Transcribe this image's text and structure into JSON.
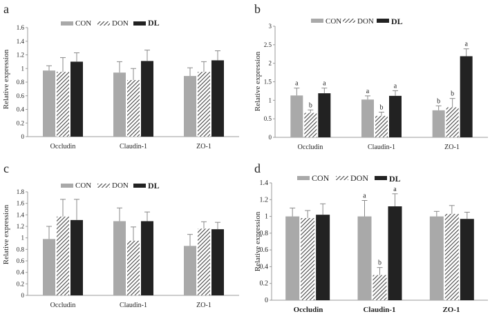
{
  "colors": {
    "CON": "#a9a9a9",
    "DON": "#444444",
    "DL": "#222222",
    "axis": "#999999",
    "error": "#888888"
  },
  "chart_data": [
    {
      "panel": "a",
      "type": "bar",
      "ylabel": "Relative expression",
      "ylim": [
        0,
        1.6
      ],
      "yticks": [
        "0",
        "0.2",
        "0.4",
        "0.6",
        "0.8",
        "1",
        "1.2",
        "1.4",
        "1.6"
      ],
      "categories": [
        "Occludin",
        "Claudin-1",
        "ZO-1"
      ],
      "legend": [
        "CON",
        "DON",
        "DL"
      ],
      "legend_position": "top",
      "series": [
        {
          "name": "CON",
          "values": [
            0.97,
            0.94,
            0.89
          ],
          "errors": [
            0.07,
            0.16,
            0.12
          ],
          "labels": [
            "",
            "",
            ""
          ]
        },
        {
          "name": "DON",
          "values": [
            0.95,
            0.83,
            0.95
          ],
          "errors": [
            0.21,
            0.17,
            0.15
          ],
          "labels": [
            "",
            "",
            ""
          ]
        },
        {
          "name": "DL",
          "values": [
            1.1,
            1.11,
            1.12
          ],
          "errors": [
            0.13,
            0.16,
            0.14
          ],
          "labels": [
            "",
            "",
            ""
          ]
        }
      ]
    },
    {
      "panel": "b",
      "type": "bar",
      "ylabel": "Relative expression",
      "ylim": [
        0,
        3
      ],
      "yticks": [
        "0",
        "0.5",
        "1",
        "1.5",
        "2",
        "2.5",
        "3"
      ],
      "categories": [
        "Occludin",
        "Claudin-1",
        "ZO-1"
      ],
      "legend": [
        "CON",
        "DON",
        "DL"
      ],
      "legend_position": "top",
      "series": [
        {
          "name": "CON",
          "values": [
            1.13,
            1.02,
            0.73
          ],
          "errors": [
            0.2,
            0.1,
            0.12
          ],
          "labels": [
            "a",
            "a",
            "b"
          ]
        },
        {
          "name": "DON",
          "values": [
            0.66,
            0.58,
            0.81
          ],
          "errors": [
            0.08,
            0.1,
            0.24
          ],
          "labels": [
            "b",
            "b",
            "b"
          ]
        },
        {
          "name": "DL",
          "values": [
            1.19,
            1.12,
            2.19
          ],
          "errors": [
            0.14,
            0.14,
            0.2
          ],
          "labels": [
            "a",
            "a",
            "a"
          ]
        }
      ]
    },
    {
      "panel": "c",
      "type": "bar",
      "ylabel": "Relative expression",
      "ylim": [
        0,
        1.8
      ],
      "yticks": [
        "0",
        "0.2",
        "0.4",
        "0.6",
        "0.8",
        "1",
        "1.2",
        "1.4",
        "1.6",
        "1.8"
      ],
      "categories": [
        "Occludin",
        "Claudin-1",
        "ZO-1"
      ],
      "legend": [
        "CON",
        "DON",
        "DL"
      ],
      "legend_position": "top",
      "series": [
        {
          "name": "CON",
          "values": [
            0.98,
            1.29,
            0.86
          ],
          "errors": [
            0.22,
            0.23,
            0.2
          ],
          "labels": [
            "",
            "",
            ""
          ]
        },
        {
          "name": "DON",
          "values": [
            1.37,
            0.95,
            1.16
          ],
          "errors": [
            0.3,
            0.24,
            0.12
          ],
          "labels": [
            "",
            "",
            ""
          ]
        },
        {
          "name": "DL",
          "values": [
            1.31,
            1.29,
            1.15
          ],
          "errors": [
            0.36,
            0.16,
            0.12
          ],
          "labels": [
            "",
            "",
            ""
          ]
        }
      ]
    },
    {
      "panel": "d",
      "type": "bar",
      "ylabel": "Relative expression",
      "ylim": [
        0,
        1.4
      ],
      "yticks": [
        "0",
        "0.2",
        "0.4",
        "0.6",
        "0.8",
        "1",
        "1.2",
        "1.4"
      ],
      "categories": [
        "Occludin",
        "Claudin-1",
        "ZO-1"
      ],
      "legend": [
        "CON",
        "DON",
        "DL"
      ],
      "legend_position": "top",
      "series": [
        {
          "name": "CON",
          "values": [
            1.0,
            1.0,
            1.0
          ],
          "errors": [
            0.1,
            0.19,
            0.06
          ],
          "labels": [
            "",
            "a",
            ""
          ]
        },
        {
          "name": "DON",
          "values": [
            0.98,
            0.3,
            1.03
          ],
          "errors": [
            0.09,
            0.09,
            0.1
          ],
          "labels": [
            "",
            "b",
            ""
          ]
        },
        {
          "name": "DL",
          "values": [
            1.02,
            1.12,
            0.97
          ],
          "errors": [
            0.13,
            0.15,
            0.08
          ],
          "labels": [
            "",
            "a",
            ""
          ]
        }
      ]
    }
  ]
}
